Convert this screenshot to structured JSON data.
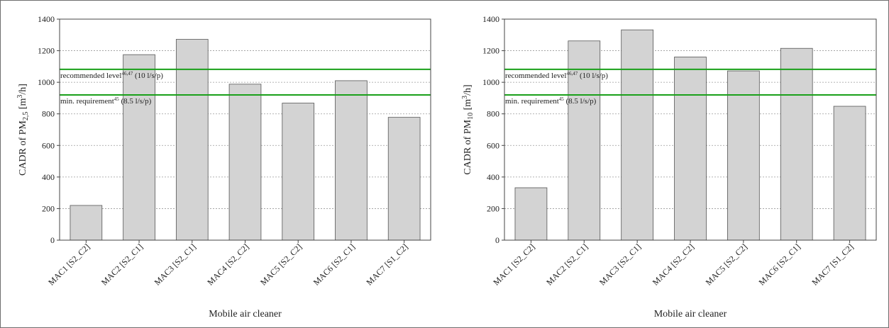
{
  "chart_data": [
    {
      "type": "bar",
      "categories": [
        "MAC1 [S2_C2]",
        "MAC2 [S2_C1]",
        "MAC3 [S2_C1]",
        "MAC4 [S2_C2]",
        "MAC5 [S2_C2]",
        "MAC6 [S2_C1]",
        "MAC7 [S1_C2]"
      ],
      "values": [
        220,
        1175,
        1272,
        988,
        868,
        1010,
        778
      ],
      "xlabel": "Mobile air cleaner",
      "ylabel": {
        "prefix": "CADR of PM",
        "sub": "2,5",
        "unit_open": " [m",
        "unit_sup": "3",
        "unit_close": "/h]"
      },
      "ylim": [
        0,
        1400
      ],
      "yticks": [
        0,
        200,
        400,
        600,
        800,
        1000,
        1200,
        1400
      ],
      "grid": true,
      "reference_lines": [
        {
          "value": 1082,
          "label_text": "recommended level",
          "label_sup": "46,47",
          "label_tail": " (10 l/s/p)",
          "color": "#1aa01a"
        },
        {
          "value": 920,
          "label_text": "min. requirement",
          "label_sup": "45",
          "label_tail": " (8.5 l/s/p)",
          "color": "#1aa01a"
        }
      ]
    },
    {
      "type": "bar",
      "categories": [
        "MAC1 [S2_C2]",
        "MAC2 [S2_C1]",
        "MAC3 [S2_C1]",
        "MAC4 [S2_C2]",
        "MAC5 [S2_C2]",
        "MAC6 [S2_C1]",
        "MAC7 [S1_C2]"
      ],
      "values": [
        332,
        1262,
        1332,
        1160,
        1072,
        1215,
        848
      ],
      "xlabel": "Mobile air cleaner",
      "ylabel": {
        "prefix": "CADR of PM",
        "sub": "10",
        "unit_open": " [m",
        "unit_sup": "3",
        "unit_close": "/h]"
      },
      "ylim": [
        0,
        1400
      ],
      "yticks": [
        0,
        200,
        400,
        600,
        800,
        1000,
        1200,
        1400
      ],
      "grid": true,
      "reference_lines": [
        {
          "value": 1082,
          "label_text": "recommended level",
          "label_sup": "46,47",
          "label_tail": " (10 l/s/p)",
          "color": "#1aa01a"
        },
        {
          "value": 920,
          "label_text": "min. requirement",
          "label_sup": "45",
          "label_tail": " (8.5 l/s/p)",
          "color": "#1aa01a"
        }
      ]
    }
  ]
}
